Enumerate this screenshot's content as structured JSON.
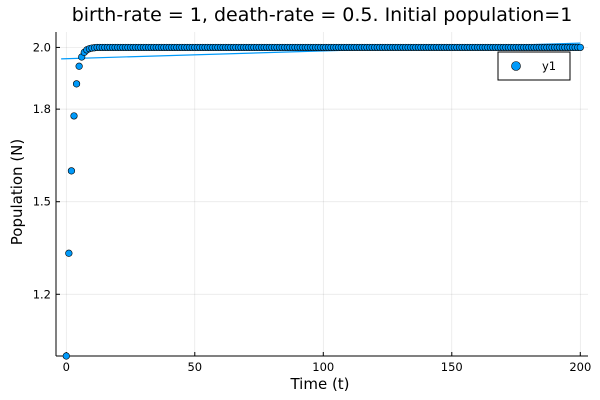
{
  "chart_data": {
    "type": "scatter",
    "title": "birth-rate = 1, death-rate = 0.5. Initial population=1",
    "xlabel": "Time (t)",
    "ylabel": "Population (N)",
    "xlim": [
      -4,
      203
    ],
    "ylim": [
      1.0,
      2.05
    ],
    "x_ticks": [
      0,
      50,
      100,
      150,
      200
    ],
    "x_tick_labels": [
      "0",
      "50",
      "100",
      "150",
      "200"
    ],
    "y_ticks": [
      1.2,
      1.5,
      1.8,
      2.0
    ],
    "y_tick_labels": [
      "1.2",
      "1.5",
      "1.8",
      "2.0"
    ],
    "grid": true,
    "legend_position": "top-right",
    "series": [
      {
        "name": "y1",
        "kind": "scatter",
        "color": "#009AFA",
        "x_start": 0,
        "x_end": 200,
        "x_step": 1,
        "y_head": [
          1.0,
          1.333,
          1.6,
          1.778,
          1.882,
          1.939,
          1.969,
          1.984,
          1.992,
          1.996,
          1.998,
          1.999
        ],
        "y_plateau": 2.0
      },
      {
        "kind": "line",
        "color": "#009AFA",
        "x": [
          -2,
          200
        ],
        "y": [
          1.963,
          2.014
        ]
      }
    ]
  }
}
